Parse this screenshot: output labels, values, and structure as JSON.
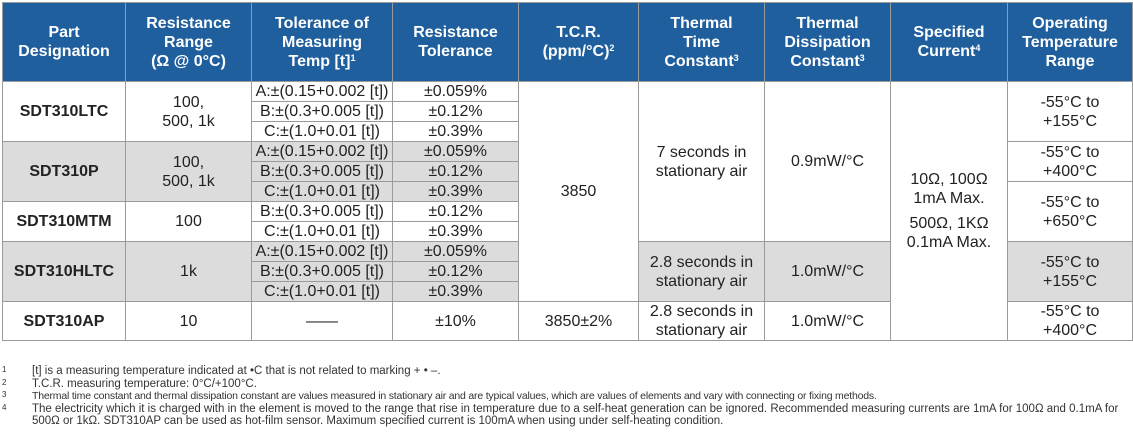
{
  "headers": {
    "part": [
      "Part",
      "Designation"
    ],
    "range": [
      "Resistance",
      "Range",
      "(Ω @ 0°C)"
    ],
    "measuring": [
      "Tolerance of",
      "Measuring",
      "Temp [t]"
    ],
    "measuring_sup": "1",
    "res_tol": [
      "Resistance",
      "Tolerance"
    ],
    "tcr": [
      "T.C.R.",
      "(ppm/°C)"
    ],
    "tcr_sup": "2",
    "time": [
      "Thermal",
      "Time",
      "Constant"
    ],
    "time_sup": "3",
    "dissipation": [
      "Thermal",
      "Dissipation",
      "Constant"
    ],
    "dissipation_sup": "3",
    "current": [
      "Specified",
      "Current"
    ],
    "current_sup": "4",
    "operating": [
      "Operating",
      "Temperature",
      "Range"
    ]
  },
  "rows": {
    "ltc": {
      "part": "SDT310LTC",
      "range": [
        "100,",
        "500, 1k"
      ],
      "operating": [
        "-55°C to",
        "+155°C"
      ],
      "tol": [
        "A:±(0.15+0.002 [t])",
        "B:±(0.3+0.005 [t])",
        "C:±(1.0+0.01 [t])"
      ],
      "res_tol": [
        "±0.059%",
        "±0.12%",
        "±0.39%"
      ]
    },
    "p": {
      "part": "SDT310P",
      "range": [
        "100,",
        "500, 1k"
      ],
      "operating": [
        "-55°C to",
        "+400°C"
      ],
      "tol": [
        "A:±(0.15+0.002 [t])",
        "B:±(0.3+0.005 [t])",
        "C:±(1.0+0.01 [t])"
      ],
      "res_tol": [
        "±0.059%",
        "±0.12%",
        "±0.39%"
      ]
    },
    "mtm": {
      "part": "SDT310MTM",
      "range": "100",
      "operating": [
        "-55°C to",
        "+650°C"
      ],
      "tol": [
        "B:±(0.3+0.005 [t])",
        "C:±(1.0+0.01 [t])"
      ],
      "res_tol": [
        "±0.12%",
        "±0.39%"
      ]
    },
    "hltc": {
      "part": "SDT310HLTC",
      "range": "1k",
      "operating": [
        "-55°C to",
        "+155°C"
      ],
      "tol": [
        "A:±(0.15+0.002 [t])",
        "B:±(0.3+0.005 [t])",
        "C:±(1.0+0.01 [t])"
      ],
      "res_tol": [
        "±0.059%",
        "±0.12%",
        "±0.39%"
      ],
      "time": [
        "2.8 seconds in",
        "stationary air"
      ],
      "dissipation": "1.0mW/°C"
    },
    "ap": {
      "part": "SDT310AP",
      "range": "10",
      "tol": "——",
      "res_tol": "±10%",
      "tcr": "3850±2%",
      "time": [
        "2.8 seconds in",
        "stationary air"
      ],
      "dissipation": "1.0mW/°C",
      "operating": [
        "-55°C to",
        "+400°C"
      ]
    }
  },
  "shared": {
    "tcr": "3850",
    "time": [
      "7 seconds in",
      "stationary air"
    ],
    "dissipation": "0.9mW/°C",
    "current": [
      "10Ω, 100Ω",
      "1mA Max.",
      "500Ω, 1KΩ",
      "0.1mA Max."
    ]
  },
  "notes": [
    {
      "num": "1",
      "text": "[t] is a measuring temperature indicated at •C that is not related to marking + • –."
    },
    {
      "num": "2",
      "text": "T.C.R. measuring temperature: 0°C/+100°C."
    },
    {
      "num": "3",
      "text": "Thermal time constant and thermal dissipation constant are values measured in stationary air and are typical values, which are values of elements and vary with connecting or fixing methods."
    },
    {
      "num": "4",
      "text": "The electricity which it is charged with in the element is moved to the range that rise in temperature due to a self-heat generation can be ignored. Recommended measuring currents are 1mA for 100Ω and 0.1mA for 500Ω or 1kΩ. SDT310AP can be used as hot-film sensor. Maximum specified current is 100mA when using under self-heating condition."
    }
  ]
}
